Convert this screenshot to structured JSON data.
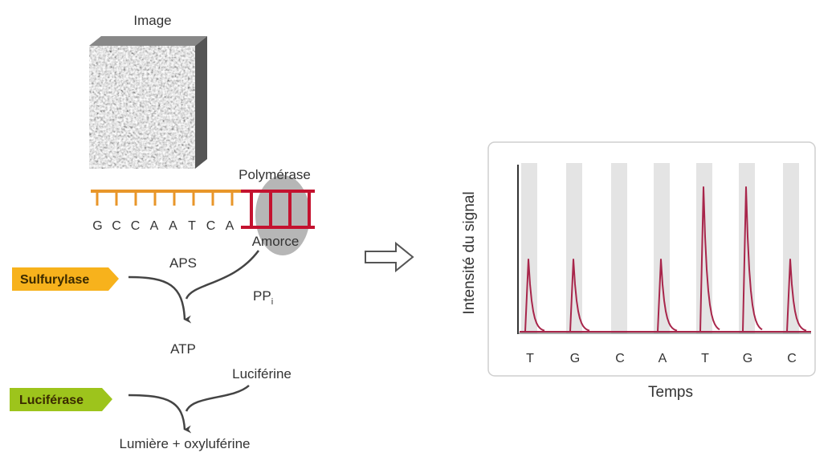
{
  "image_label": "Image",
  "polymerase_label": "Polymérase",
  "primer_label": "Amorce",
  "template_bases": [
    "G",
    "C",
    "C",
    "A",
    "A",
    "T",
    "C",
    "A"
  ],
  "enzymes": {
    "sulfurylase": "Sulfurylase",
    "luciferase": "Luciférase"
  },
  "molecules": {
    "aps": "APS",
    "ppi": {
      "text": "PP",
      "subscript": "i"
    },
    "atp": "ATP",
    "luciferin": "Luciférine",
    "products": "Lumière + oxyluférine"
  },
  "pyrogram": {
    "y_label": "Intensité du signal",
    "x_label": "Temps",
    "nucleotides": [
      "T",
      "G",
      "C",
      "A",
      "T",
      "G",
      "C"
    ],
    "intensities": [
      1,
      1,
      0,
      1,
      2,
      2,
      1
    ]
  }
}
